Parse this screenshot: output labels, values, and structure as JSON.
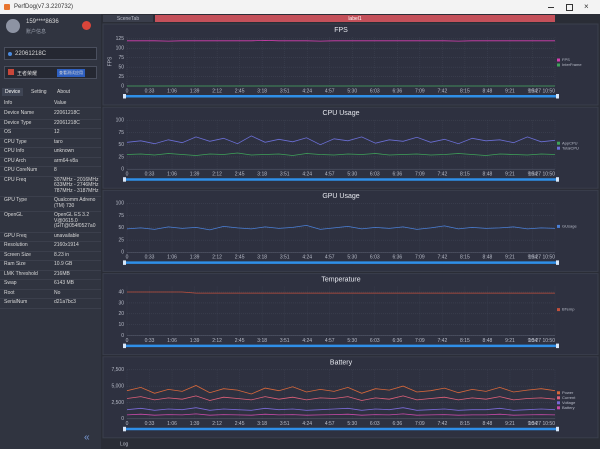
{
  "window": {
    "title": "PerfDog(v7.3.220732)"
  },
  "sidebar": {
    "user": "159****8636",
    "user_sub": "账户信息",
    "device": "22061218C",
    "app": "王者荣耀",
    "app_tag": "查看测试应用",
    "tabs": [
      "Device",
      "Setting",
      "About"
    ],
    "columns": [
      "Info",
      "Value"
    ],
    "rows": [
      [
        "Device Name",
        "22061218C"
      ],
      [
        "Device Type",
        "22061218C"
      ],
      [
        "OS",
        "12"
      ],
      [
        "CPU Type",
        "taro"
      ],
      [
        "CPU Info",
        "unknown"
      ],
      [
        "CPU Arch",
        "arm64-v8a"
      ],
      [
        "CPU CoreNum",
        "8"
      ],
      [
        "CPU Freq",
        "307MHz - 2016MHz\n633MHz - 2746MHz\n787MHz - 3187MHz"
      ],
      [
        "GPU Type",
        "Qualcomm Adreno\n(TM) 730"
      ],
      [
        "OpenGL",
        "OpenGL ES 3.2\nV@0615.0\n(GIT@054f0527a0"
      ],
      [
        "GPU Freq",
        "unavailable"
      ],
      [
        "Resolution",
        "2160x1914"
      ],
      [
        "Screen Size",
        "8.23 in"
      ],
      [
        "Ram Size",
        "10.9 GB"
      ],
      [
        "LMK Threshold",
        "216MB"
      ],
      [
        "Swap",
        "6143 MB"
      ],
      [
        "Root",
        "No"
      ],
      [
        "SerialNum",
        "d21a7bc3"
      ]
    ]
  },
  "toolbar": {
    "scene_tab": "SceneTab",
    "label": "label1"
  },
  "footer": {
    "log": "Log"
  },
  "time_labels": [
    "0",
    "0:33",
    "1:06",
    "1:39",
    "2:12",
    "2:45",
    "3:18",
    "3:51",
    "4:24",
    "4:57",
    "5:30",
    "6:03",
    "6:36",
    "7:09",
    "7:42",
    "8:15",
    "8:48",
    "9:21",
    "9:54",
    "10:27 10:50"
  ],
  "chart_data": [
    {
      "type": "line",
      "title": "FPS",
      "ylabel": "FPS",
      "ylim": [
        0,
        130
      ],
      "yticks": [
        0,
        25,
        50,
        75,
        100,
        125
      ],
      "grid": true,
      "series": [
        {
          "name": "FPS",
          "color": "#d63fb0",
          "values": [
            120,
            120,
            120,
            119,
            120,
            120,
            120,
            120,
            120,
            120,
            121,
            120,
            120,
            120,
            119,
            120,
            120,
            120,
            120,
            120,
            120,
            120,
            120,
            120,
            119,
            120,
            120,
            120,
            120,
            120,
            120,
            120
          ]
        },
        {
          "name": "InterFrame",
          "color": "#3fa35a",
          "values": [
            0,
            0,
            0,
            0,
            0,
            0,
            0,
            0,
            0,
            0,
            0,
            0,
            0,
            0,
            0,
            0,
            0,
            0,
            0,
            0,
            0,
            0,
            0,
            0,
            0,
            0,
            0,
            0,
            0,
            0,
            0,
            0
          ]
        }
      ]
    },
    {
      "type": "line",
      "title": "CPU Usage",
      "ylim": [
        0,
        100
      ],
      "yticks": [
        0,
        25,
        50,
        75,
        100
      ],
      "grid": true,
      "series": [
        {
          "name": "AppCPU",
          "color": "#3fa35a",
          "values": [
            30,
            31,
            29,
            32,
            30,
            28,
            31,
            30,
            33,
            29,
            30,
            31,
            28,
            32,
            30,
            29,
            31,
            30,
            32,
            29,
            30,
            31,
            29,
            30,
            32,
            30,
            28,
            31,
            30,
            29,
            31,
            30
          ]
        },
        {
          "name": "TotalCPU",
          "color": "#6b6fd6",
          "values": [
            55,
            58,
            52,
            60,
            54,
            66,
            57,
            63,
            52,
            68,
            55,
            61,
            56,
            64,
            50,
            62,
            58,
            66,
            53,
            60,
            57,
            65,
            55,
            61,
            52,
            63,
            58,
            60,
            54,
            66,
            56,
            59
          ]
        }
      ]
    },
    {
      "type": "line",
      "title": "GPU Usage",
      "ylim": [
        0,
        100
      ],
      "yticks": [
        0,
        25,
        50,
        75,
        100
      ],
      "grid": true,
      "series": [
        {
          "name": "GUsage",
          "color": "#4a7fd6",
          "values": [
            48,
            50,
            47,
            52,
            49,
            51,
            46,
            53,
            50,
            48,
            52,
            49,
            51,
            55,
            47,
            50,
            53,
            48,
            51,
            49,
            52,
            47,
            50,
            54,
            48,
            51,
            49,
            50,
            52,
            48,
            50,
            49
          ]
        }
      ]
    },
    {
      "type": "line",
      "title": "Temperature",
      "ylim": [
        0,
        45
      ],
      "yticks": [
        0,
        10,
        20,
        30,
        40
      ],
      "grid": true,
      "series": [
        {
          "name": "BTemp",
          "color": "#c0503c",
          "values": [
            40,
            40,
            40,
            40,
            40,
            39,
            39,
            39,
            39,
            39,
            39,
            39,
            39,
            39,
            39,
            39,
            39,
            39,
            39,
            39,
            39,
            39,
            39,
            39,
            39,
            39,
            39,
            39,
            39,
            39,
            39,
            39
          ]
        }
      ]
    },
    {
      "type": "line",
      "title": "Battery",
      "ylim": [
        0,
        7500
      ],
      "yticks": [
        0,
        {
          "value": 2500,
          "label": "2,500"
        },
        {
          "value": 5000,
          "label": "5,000"
        },
        {
          "value": 7500,
          "label": "7,500"
        }
      ],
      "grid": true,
      "series": [
        {
          "name": "Power",
          "color": "#d9683a",
          "values": [
            4300,
            4800,
            3900,
            4500,
            4200,
            5100,
            4000,
            4600,
            4400,
            3800,
            4700,
            4300,
            4900,
            4100,
            4500,
            4200,
            4800,
            3900,
            4600,
            4400,
            5000,
            4100,
            4300,
            4700,
            4000,
            4500,
            4200,
            4800,
            4100,
            4400,
            4600,
            4300
          ]
        },
        {
          "name": "Current",
          "color": "#e0607a",
          "values": [
            3100,
            3400,
            2900,
            3200,
            3000,
            3500,
            2800,
            3300,
            3100,
            2900,
            3400,
            3000,
            3300,
            2900,
            3200,
            3100,
            3400,
            2800,
            3200,
            3000,
            3500,
            2900,
            3100,
            3300,
            2900,
            3200,
            3000,
            3400,
            2900,
            3100,
            3200,
            3000
          ]
        },
        {
          "name": "Voltage",
          "color": "#7a6ad6",
          "values": [
            1400,
            1600,
            1300,
            1500,
            1400,
            1700,
            1300,
            1500,
            1400,
            1300,
            1600,
            1400,
            1500,
            1300,
            1400,
            1500,
            1600,
            1300,
            1500,
            1400,
            1700,
            1300,
            1400,
            1500,
            1300,
            1400,
            1400,
            1600,
            1300,
            1400,
            1500,
            1400
          ]
        },
        {
          "name": "Battery",
          "color": "#c84aa8",
          "values": [
            600,
            700,
            550,
            650,
            600,
            750,
            550,
            650,
            600,
            550,
            700,
            600,
            650,
            550,
            600,
            650,
            700,
            550,
            650,
            600,
            750,
            550,
            600,
            650,
            550,
            600,
            600,
            700,
            550,
            600,
            650,
            600
          ]
        }
      ]
    }
  ]
}
